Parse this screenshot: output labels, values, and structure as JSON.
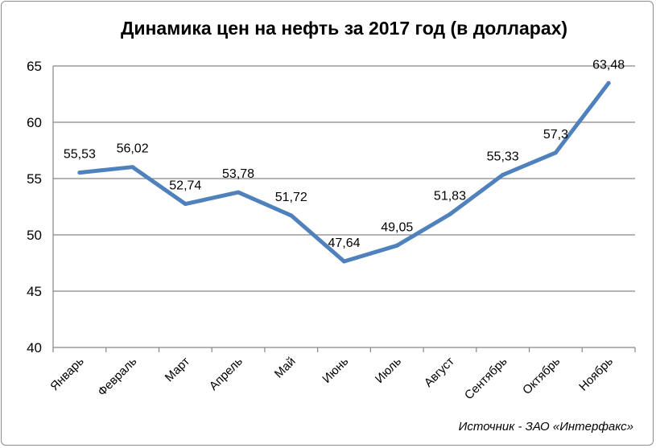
{
  "chart_data": {
    "type": "line",
    "title": "Динамика цен на нефть за 2017 год (в долларах)",
    "source": "Источник - ЗАО «Интерфакс»",
    "categories": [
      "Январь",
      "Февраль",
      "Март",
      "Апрель",
      "Май",
      "Июнь",
      "Июль",
      "Август",
      "Сентябрь",
      "Октябрь",
      "Ноябрь"
    ],
    "series": [
      {
        "values": [
          55.53,
          56.02,
          52.74,
          53.78,
          51.72,
          47.64,
          49.05,
          51.83,
          55.33,
          57.3,
          63.48
        ],
        "labels": [
          "55,53",
          "56,02",
          "52,74",
          "53,78",
          "51,72",
          "47,64",
          "49,05",
          "51,83",
          "55,33",
          "57,3",
          "63,48"
        ],
        "color": "#4f81bd"
      }
    ],
    "ylim": [
      40,
      65
    ],
    "yticks": [
      "40",
      "45",
      "50",
      "55",
      "60",
      "65"
    ],
    "grid": true,
    "legend": "none"
  }
}
